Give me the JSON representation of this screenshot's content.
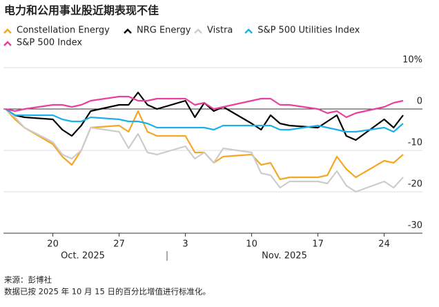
{
  "chart_data": {
    "type": "line",
    "title": "电力和公用事业股近期表现不佳",
    "x": [
      "2025-10-15",
      "2025-10-16",
      "2025-10-17",
      "2025-10-20",
      "2025-10-21",
      "2025-10-22",
      "2025-10-23",
      "2025-10-24",
      "2025-10-27",
      "2025-10-28",
      "2025-10-29",
      "2025-10-30",
      "2025-10-31",
      "2025-11-03",
      "2025-11-04",
      "2025-11-05",
      "2025-11-06",
      "2025-11-07",
      "2025-11-10",
      "2025-11-11",
      "2025-11-12",
      "2025-11-13",
      "2025-11-14",
      "2025-11-17",
      "2025-11-18",
      "2025-11-19",
      "2025-11-20",
      "2025-11-21",
      "2025-11-24",
      "2025-11-25",
      "2025-11-26"
    ],
    "series": [
      {
        "name": "Constellation Energy",
        "color": "#f5a623",
        "values": [
          0,
          -2.5,
          -4.5,
          -8.5,
          -11.5,
          -13.5,
          -10,
          -4.5,
          -4,
          -5.5,
          -0.5,
          -5.5,
          -6.5,
          -6.5,
          -10.5,
          -10.5,
          -13,
          -11.5,
          -11,
          -13.5,
          -13,
          -17,
          -16.5,
          -16.5,
          -16,
          -11.5,
          -14.5,
          -16.5,
          -12.5,
          -13,
          -11
        ]
      },
      {
        "name": "NRG Energy",
        "color": "#000000",
        "values": [
          0,
          -1.5,
          -2,
          -2.5,
          -5,
          -6.5,
          -4,
          -0.5,
          1,
          1,
          4,
          1,
          0,
          2,
          -2,
          1.5,
          -0.5,
          0.5,
          -3.5,
          -5,
          -1.5,
          -3.5,
          -4,
          -4.5,
          -3,
          -1.5,
          -6.5,
          -7.5,
          -2.5,
          -4.5,
          -1.5
        ]
      },
      {
        "name": "Vistra",
        "color": "#cccccc",
        "values": [
          0,
          -2,
          -4.5,
          -8,
          -11,
          -12,
          -10,
          -4.5,
          -5.5,
          -9.5,
          -6,
          -10.5,
          -11,
          -9,
          -12,
          -10.5,
          -13,
          -9.5,
          -10.5,
          -15.5,
          -16,
          -19,
          -17.5,
          -17.5,
          -18,
          -15,
          -18.5,
          -20,
          -17.5,
          -19,
          -16.5
        ]
      },
      {
        "name": "S&P 500 Utilities Index",
        "color": "#1ab0e8",
        "values": [
          0,
          -1.5,
          -1.5,
          -1.5,
          -2.5,
          -3,
          -3,
          -2,
          -2.5,
          -3,
          -3,
          -3.5,
          -4.5,
          -4.5,
          -4.5,
          -4.5,
          -5,
          -4,
          -4,
          -4,
          -4,
          -5,
          -5,
          -4,
          -4.5,
          -5,
          -5.5,
          -5.5,
          -4.5,
          -5.5,
          -3.5
        ]
      },
      {
        "name": "S&P 500 Index",
        "color": "#e8409c",
        "values": [
          0,
          -0.5,
          0,
          1,
          1,
          0.5,
          1,
          2,
          3,
          3,
          2,
          2,
          2.5,
          2.5,
          1,
          1.5,
          0,
          0.5,
          2,
          2.5,
          2.5,
          1,
          1,
          0,
          -1,
          -0.5,
          -2,
          -1,
          0.5,
          1.5,
          2
        ]
      }
    ],
    "xlim": [
      "2025-10-15",
      "2025-11-26"
    ],
    "xticks": [
      {
        "value": "2025-10-20",
        "label": "20"
      },
      {
        "value": "2025-10-27",
        "label": "27"
      },
      {
        "value": "2025-11-03",
        "label": "3"
      },
      {
        "value": "2025-11-10",
        "label": "10"
      },
      {
        "value": "2025-11-17",
        "label": "17"
      },
      {
        "value": "2025-11-24",
        "label": "24"
      }
    ],
    "month_labels": [
      "Oct. 2025",
      "Nov. 2025"
    ],
    "ylim": [
      -30,
      10
    ],
    "yticks": [
      {
        "value": 10,
        "label": "10%"
      },
      0,
      -10,
      -20,
      -30
    ],
    "grid": true,
    "source": "来源：彭博社",
    "note": "数据已按 2025 年 10 月 15 日的百分比增值进行标准化。"
  }
}
